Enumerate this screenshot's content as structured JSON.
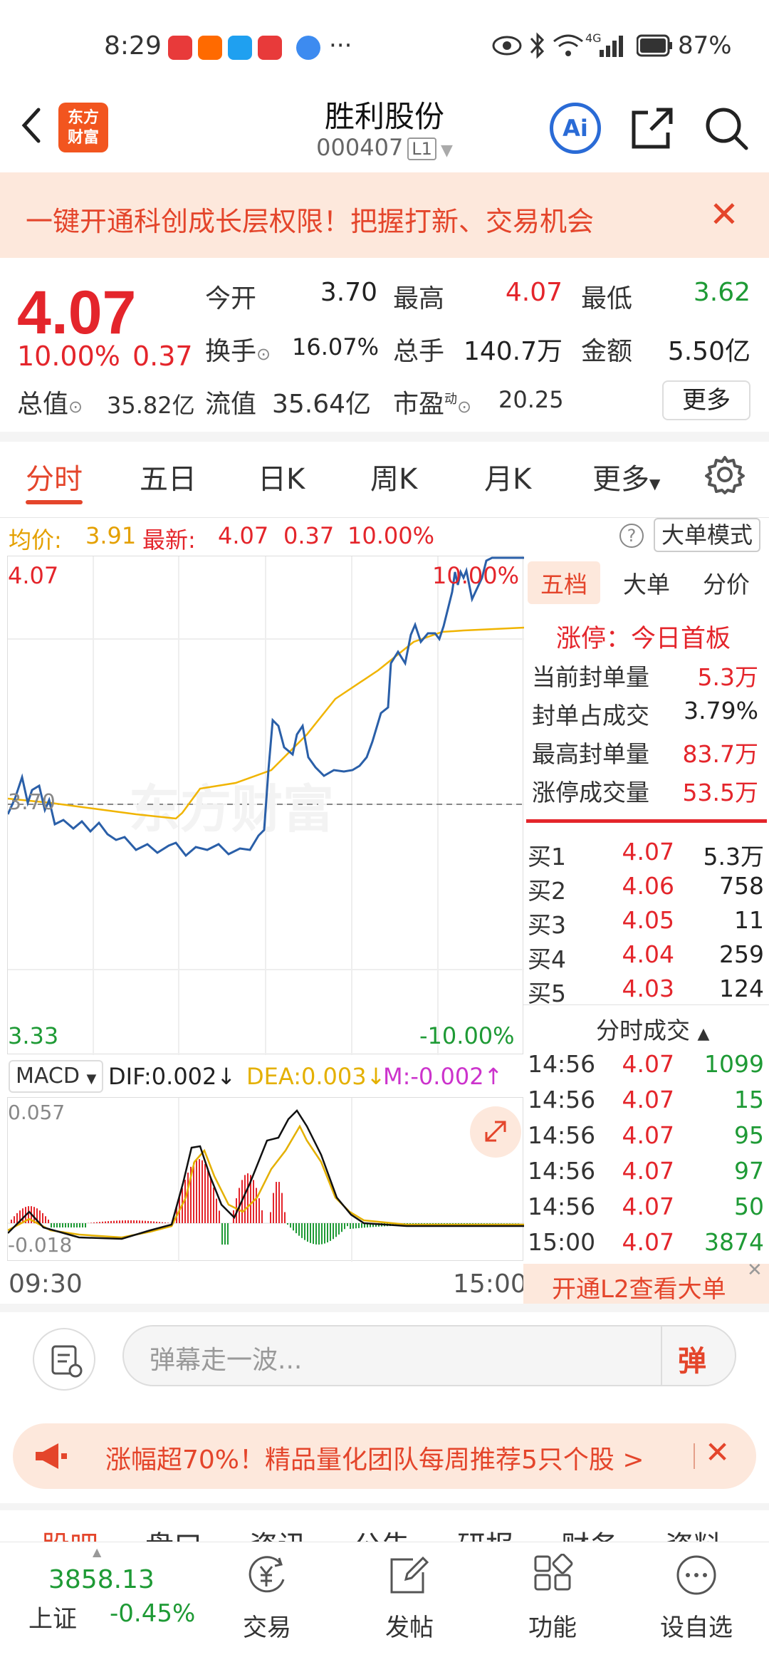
{
  "status": {
    "time": "8:29",
    "more": "···",
    "network": "4G",
    "battery": "87%"
  },
  "header": {
    "title": "胜利股份",
    "code": "000407",
    "level": "L1",
    "ai": "Ai",
    "logo_line1": "东方",
    "logo_line2": "财富"
  },
  "banner": {
    "text": "一键开通科创成长层权限！把握打新、交易机会"
  },
  "quote": {
    "price": "4.07",
    "pct": "10.00%",
    "chg": "0.37",
    "open_label": "今开",
    "open": "3.70",
    "high_label": "最高",
    "high": "4.07",
    "low_label": "最低",
    "low": "3.62",
    "turnover_label": "换手",
    "turnover": "16.07%",
    "vol_label": "总手",
    "vol": "140.7万",
    "amount_label": "金额",
    "amount": "5.50亿",
    "mktcap_label": "总值",
    "mktcap": "35.82亿",
    "float_label": "流值",
    "float": "35.64亿",
    "pe_label": "市盈",
    "pe_sup": "动",
    "pe": "20.25",
    "more": "更多"
  },
  "tabs": [
    "分时",
    "五日",
    "日K",
    "周K",
    "月K",
    "更多"
  ],
  "infoline": {
    "avg_label": "均价:",
    "avg": "3.91",
    "latest_label": "最新:",
    "latest": "4.07",
    "chg": "0.37",
    "pct": "10.00%",
    "mode": "大单模式"
  },
  "chart_data": {
    "type": "line",
    "y_top": "4.07",
    "y_top_pct": "10.00%",
    "y_bottom": "3.33",
    "y_bottom_pct": "-10.00%",
    "y_mid": "3.70",
    "x_start": "09:30",
    "x_end": "15:00",
    "watermark": "东方财富"
  },
  "macd": {
    "name": "MACD",
    "dif": "DIF:0.002",
    "dea": "DEA:0.003",
    "m": "M:-0.002",
    "top": "0.057",
    "bottom": "-0.018"
  },
  "right": {
    "tabs": [
      "五档",
      "大单",
      "分价"
    ],
    "limit_title": "涨停：今日首板",
    "stats": [
      {
        "l": "当前封单量",
        "v": "5.3万"
      },
      {
        "l": "封单占成交",
        "v": "3.79%"
      },
      {
        "l": "最高封单量",
        "v": "83.7万"
      },
      {
        "l": "涨停成交量",
        "v": "53.5万"
      }
    ],
    "bids": [
      {
        "l": "买1",
        "p": "4.07",
        "v": "5.3万"
      },
      {
        "l": "买2",
        "p": "4.06",
        "v": "758"
      },
      {
        "l": "买3",
        "p": "4.05",
        "v": "11"
      },
      {
        "l": "买4",
        "p": "4.04",
        "v": "259"
      },
      {
        "l": "买5",
        "p": "4.03",
        "v": "124"
      }
    ],
    "ticks_title": "分时成交",
    "ticks": [
      {
        "t": "14:56",
        "p": "4.07",
        "v": "1099"
      },
      {
        "t": "14:56",
        "p": "4.07",
        "v": "15"
      },
      {
        "t": "14:56",
        "p": "4.07",
        "v": "95"
      },
      {
        "t": "14:56",
        "p": "4.07",
        "v": "97"
      },
      {
        "t": "14:56",
        "p": "4.07",
        "v": "50"
      },
      {
        "t": "15:00",
        "p": "4.07",
        "v": "3874"
      }
    ],
    "l2": "开通L2查看大单"
  },
  "chat": {
    "placeholder": "弹幕走一波...",
    "send": "弹"
  },
  "ad": {
    "text": "涨幅超70%！精品量化团队每周推荐5只个股 >"
  },
  "bottomtabs": [
    "股吧",
    "盘口",
    "资讯",
    "公告",
    "研报",
    "财务",
    "资料"
  ],
  "nav": {
    "index_value": "3858.13",
    "index_name": "上证",
    "index_pct": "-0.45%",
    "items": [
      "交易",
      "发帖",
      "功能",
      "设自选"
    ]
  }
}
